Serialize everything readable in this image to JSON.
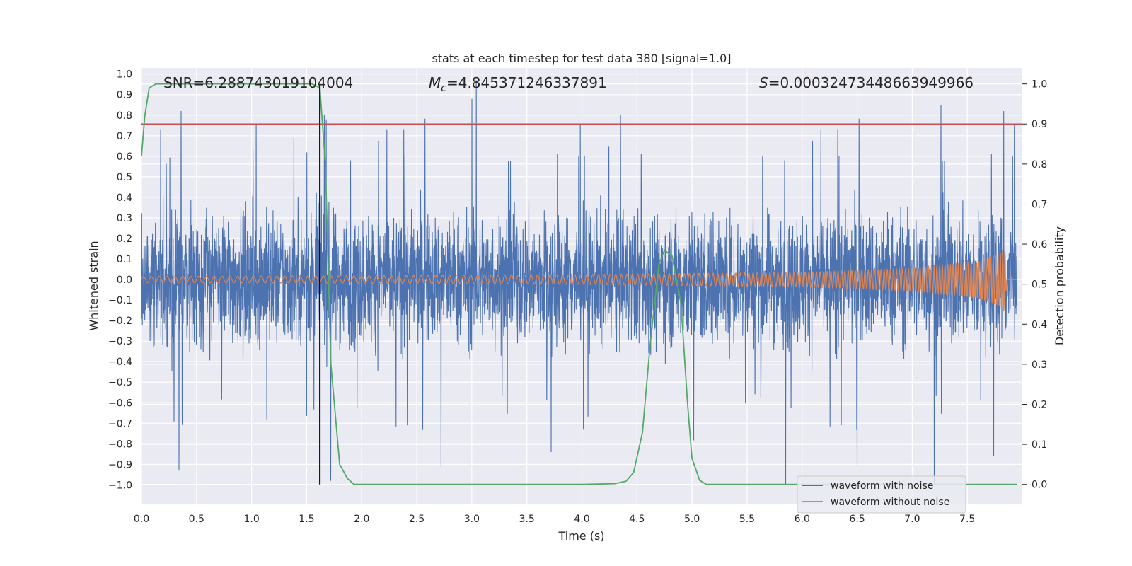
{
  "chart_data": {
    "type": "line",
    "title": "stats at each timestep for test data 380 [signal=1.0]",
    "xlabel": "Time (s)",
    "ylabel": "Whitened strain",
    "y2label": "Detection probability",
    "xlim": [
      0.0,
      8.0
    ],
    "ylim": [
      -1.095,
      1.03
    ],
    "y2lim": [
      -0.05,
      1.04
    ],
    "x_ticks": [
      0.0,
      0.5,
      1.0,
      1.5,
      2.0,
      2.5,
      3.0,
      3.5,
      4.0,
      4.5,
      5.0,
      5.5,
      6.0,
      6.5,
      7.0,
      7.5
    ],
    "x_tick_labels": [
      "0.0",
      "0.5",
      "1.0",
      "1.5",
      "2.0",
      "2.5",
      "3.0",
      "3.5",
      "4.0",
      "4.5",
      "5.0",
      "5.5",
      "6.0",
      "6.5",
      "7.0",
      "7.5"
    ],
    "y_ticks": [
      -1.0,
      -0.9,
      -0.8,
      -0.7,
      -0.6,
      -0.5,
      -0.4,
      -0.3,
      -0.2,
      -0.1,
      0.0,
      0.1,
      0.2,
      0.3,
      0.4,
      0.5,
      0.6,
      0.7,
      0.8,
      0.9,
      1.0
    ],
    "y_tick_labels": [
      "−1.0",
      "−0.9",
      "−0.8",
      "−0.7",
      "−0.6",
      "−0.5",
      "−0.4",
      "−0.3",
      "−0.2",
      "−0.1",
      "0.0",
      "0.1",
      "0.2",
      "0.3",
      "0.4",
      "0.5",
      "0.6",
      "0.7",
      "0.8",
      "0.9",
      "1.0"
    ],
    "y2_ticks": [
      0.0,
      0.1,
      0.2,
      0.3,
      0.4,
      0.5,
      0.6,
      0.7,
      0.8,
      0.9,
      1.0
    ],
    "y2_tick_labels": [
      "0.0",
      "0.1",
      "0.2",
      "0.3",
      "0.4",
      "0.5",
      "0.6",
      "0.7",
      "0.8",
      "0.9",
      "1.0"
    ],
    "annotations": {
      "snr": "SNR=6.288743019104004",
      "mc_symbol": "M",
      "mc_sub": "c",
      "mc_value": "=4.845371246337891",
      "s_symbol": "S",
      "s_value": "=0.00032473448663949966"
    },
    "series": [
      {
        "name": "waveform with noise",
        "color": "#4c72b0",
        "noise_envelope": {
          "typical_amplitude": 0.28,
          "rare_spike_max": 0.97,
          "rare_spike_min": -1.0,
          "spikes": [
            [
              0.36,
              0.82
            ],
            [
              0.34,
              -0.93
            ],
            [
              1.62,
              -0.98
            ],
            [
              1.66,
              0.8
            ],
            [
              1.72,
              -0.98
            ],
            [
              3.0,
              0.88
            ],
            [
              3.04,
              0.97
            ],
            [
              2.72,
              -0.91
            ],
            [
              3.72,
              -0.84
            ],
            [
              4.35,
              0.8
            ],
            [
              5.85,
              -1.0
            ],
            [
              6.5,
              -0.91
            ],
            [
              7.26,
              0.85
            ],
            [
              7.2,
              -1.0
            ],
            [
              7.74,
              -0.86
            ],
            [
              7.83,
              0.82
            ]
          ]
        }
      },
      {
        "name": "waveform without noise",
        "color": "#dd8452",
        "chirp_envelope": [
          [
            0.0,
            0.015
          ],
          [
            2.0,
            0.018
          ],
          [
            4.0,
            0.024
          ],
          [
            6.0,
            0.035
          ],
          [
            7.0,
            0.055
          ],
          [
            7.6,
            0.09
          ],
          [
            7.8,
            0.13
          ],
          [
            7.84,
            0.16
          ],
          [
            7.86,
            0.0
          ]
        ]
      },
      {
        "name": "detection probability",
        "color": "#55a868",
        "axis": "right",
        "x": [
          0.0,
          0.03,
          0.07,
          0.13,
          0.2,
          0.5,
          1.0,
          1.5,
          1.55,
          1.62,
          1.67,
          1.72,
          1.8,
          1.87,
          1.93,
          2.2,
          3.0,
          4.0,
          4.3,
          4.4,
          4.47,
          4.55,
          4.62,
          4.7,
          4.75,
          4.82,
          4.9,
          4.96,
          5.0,
          5.07,
          5.13,
          5.3,
          6.0,
          7.0,
          7.95
        ],
        "y": [
          0.82,
          0.92,
          0.99,
          1.0,
          1.0,
          1.0,
          1.0,
          1.0,
          1.0,
          0.99,
          0.8,
          0.3,
          0.05,
          0.015,
          0.0,
          0.0,
          0.0,
          0.0,
          0.002,
          0.008,
          0.03,
          0.13,
          0.35,
          0.55,
          0.585,
          0.57,
          0.45,
          0.2,
          0.065,
          0.01,
          0.0,
          0.0,
          0.0,
          0.0,
          0.0
        ]
      }
    ],
    "threshold": {
      "value": 0.9,
      "axis": "right",
      "color": "#c44e52"
    },
    "marker": {
      "x": 1.62,
      "color": "#000000"
    },
    "legend": {
      "placement": "lower-right",
      "entries": [
        "waveform with noise",
        "waveform without noise"
      ]
    }
  }
}
